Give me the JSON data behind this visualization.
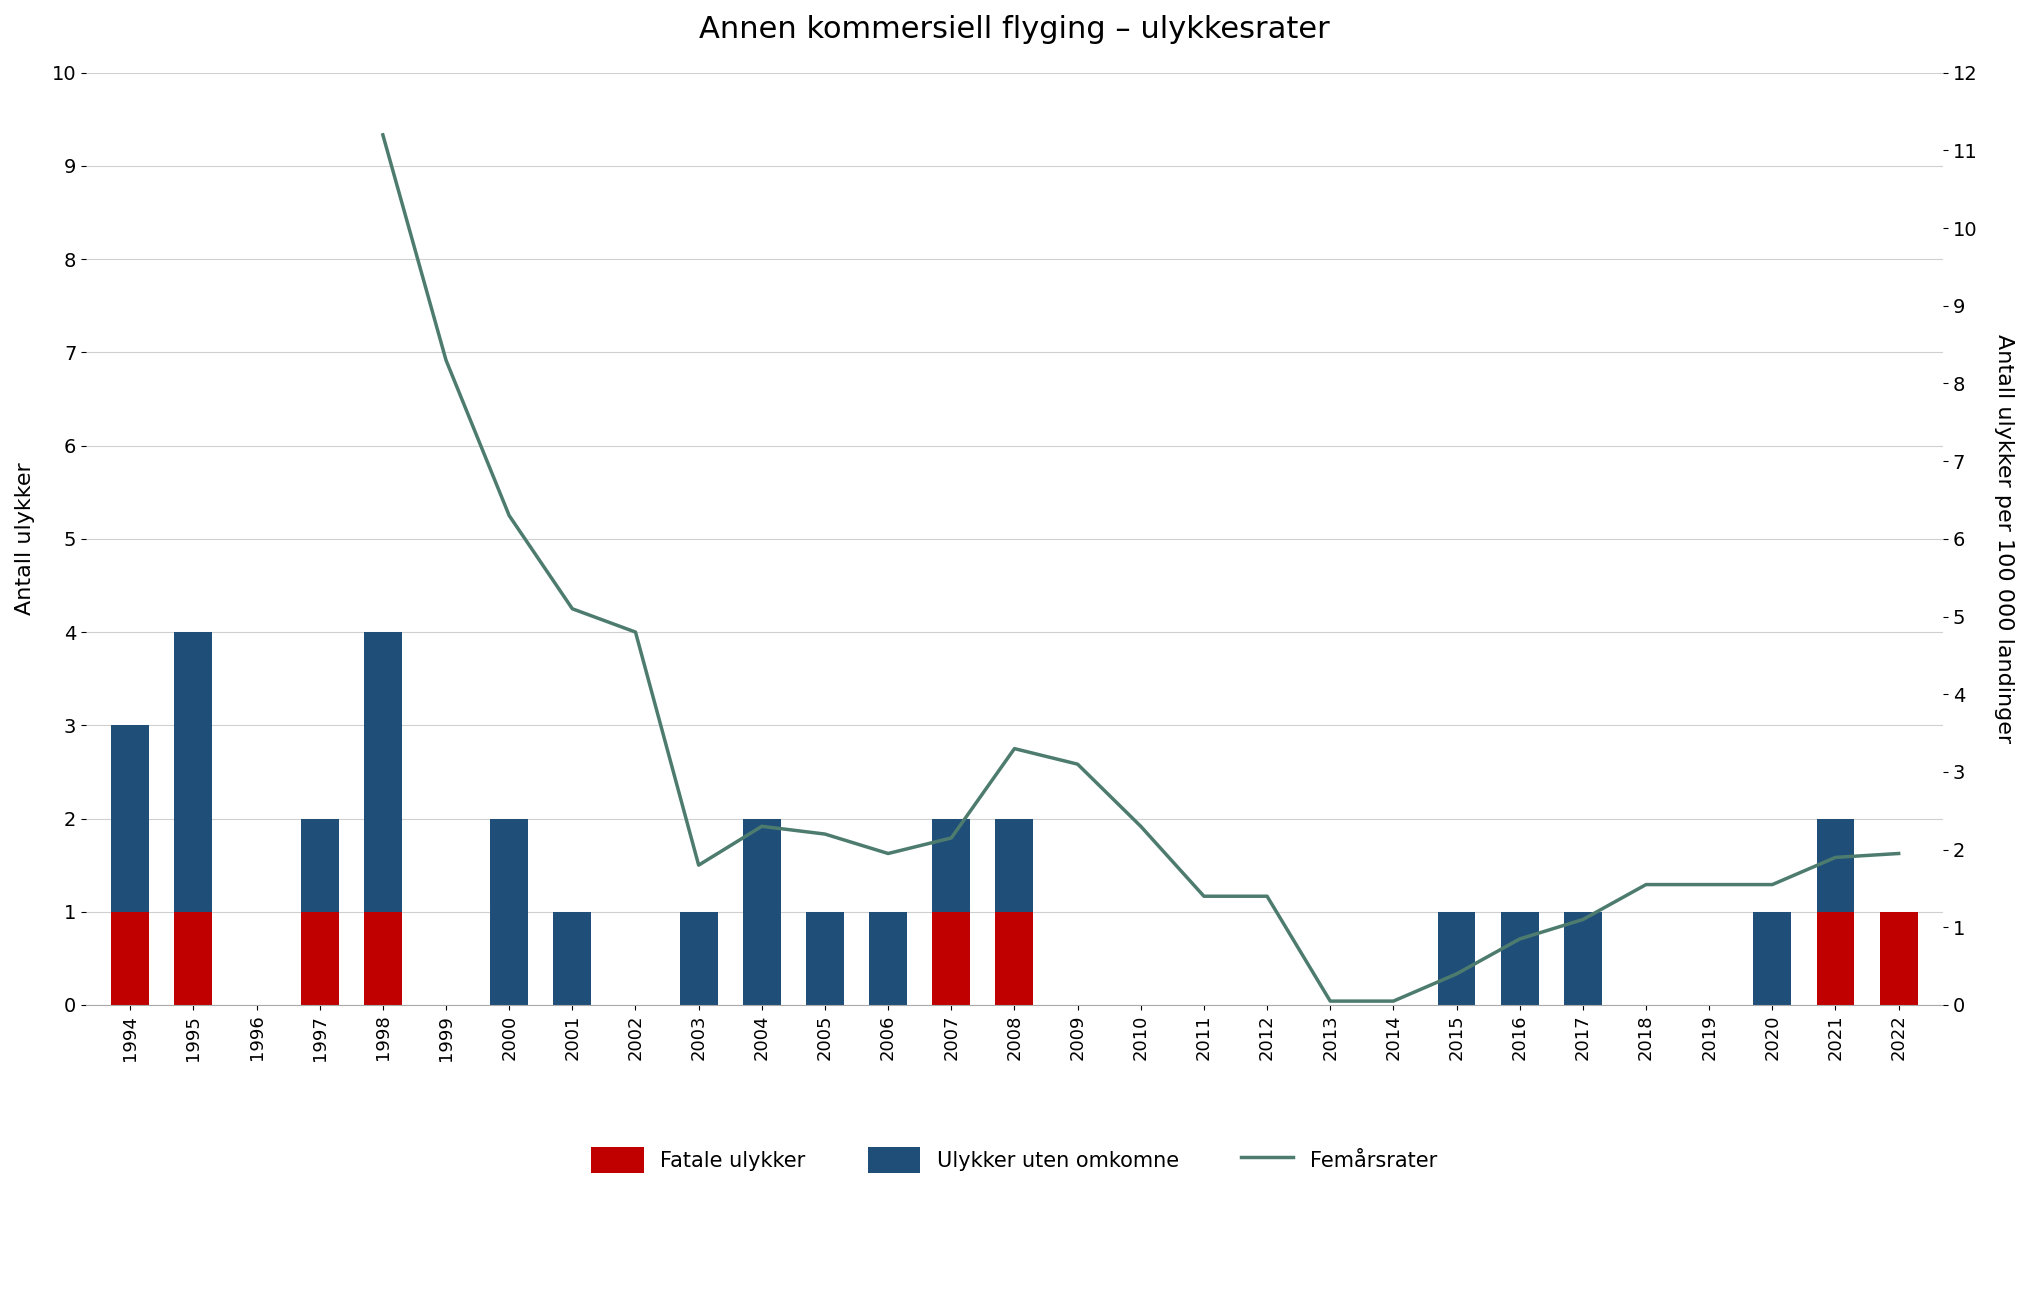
{
  "title": "Annen kommersiell flyging – ulykkesrater",
  "years": [
    1994,
    1995,
    1996,
    1997,
    1998,
    1999,
    2000,
    2001,
    2002,
    2003,
    2004,
    2005,
    2006,
    2007,
    2008,
    2009,
    2010,
    2011,
    2012,
    2013,
    2014,
    2015,
    2016,
    2017,
    2018,
    2019,
    2020,
    2021,
    2022
  ],
  "fatal": [
    1,
    1,
    0,
    1,
    1,
    0,
    0,
    0,
    0,
    0,
    0,
    0,
    0,
    1,
    1,
    0,
    0,
    0,
    0,
    0,
    0,
    0,
    0,
    0,
    0,
    0,
    0,
    1,
    1
  ],
  "non_fatal": [
    2,
    3,
    0,
    1,
    3,
    0,
    2,
    1,
    0,
    1,
    2,
    1,
    1,
    1,
    1,
    0,
    0,
    0,
    0,
    0,
    0,
    1,
    1,
    1,
    0,
    0,
    1,
    1,
    0
  ],
  "rate": [
    null,
    null,
    null,
    null,
    11.2,
    8.3,
    6.3,
    5.1,
    4.8,
    1.8,
    2.3,
    2.2,
    1.95,
    2.15,
    3.3,
    3.1,
    2.3,
    1.4,
    1.4,
    0.05,
    0.05,
    0.4,
    0.85,
    1.1,
    1.55,
    1.55,
    1.55,
    1.9,
    1.95
  ],
  "ylabel_left": "Antall ulykker",
  "ylabel_right": "Antall ulykker per 100 000 landinger",
  "ylim_left": [
    0,
    10
  ],
  "ylim_right": [
    0,
    12
  ],
  "bar_color_fatal": "#c00000",
  "bar_color_non_fatal": "#1f4e79",
  "line_color": "#4d7c6f",
  "legend_fatal": "Fatale ulykker",
  "legend_non_fatal": "Ulykker uten omkomne",
  "legend_rate": "Femårsrater",
  "background_color": "#ffffff",
  "grid_color": "#d0d0d0"
}
